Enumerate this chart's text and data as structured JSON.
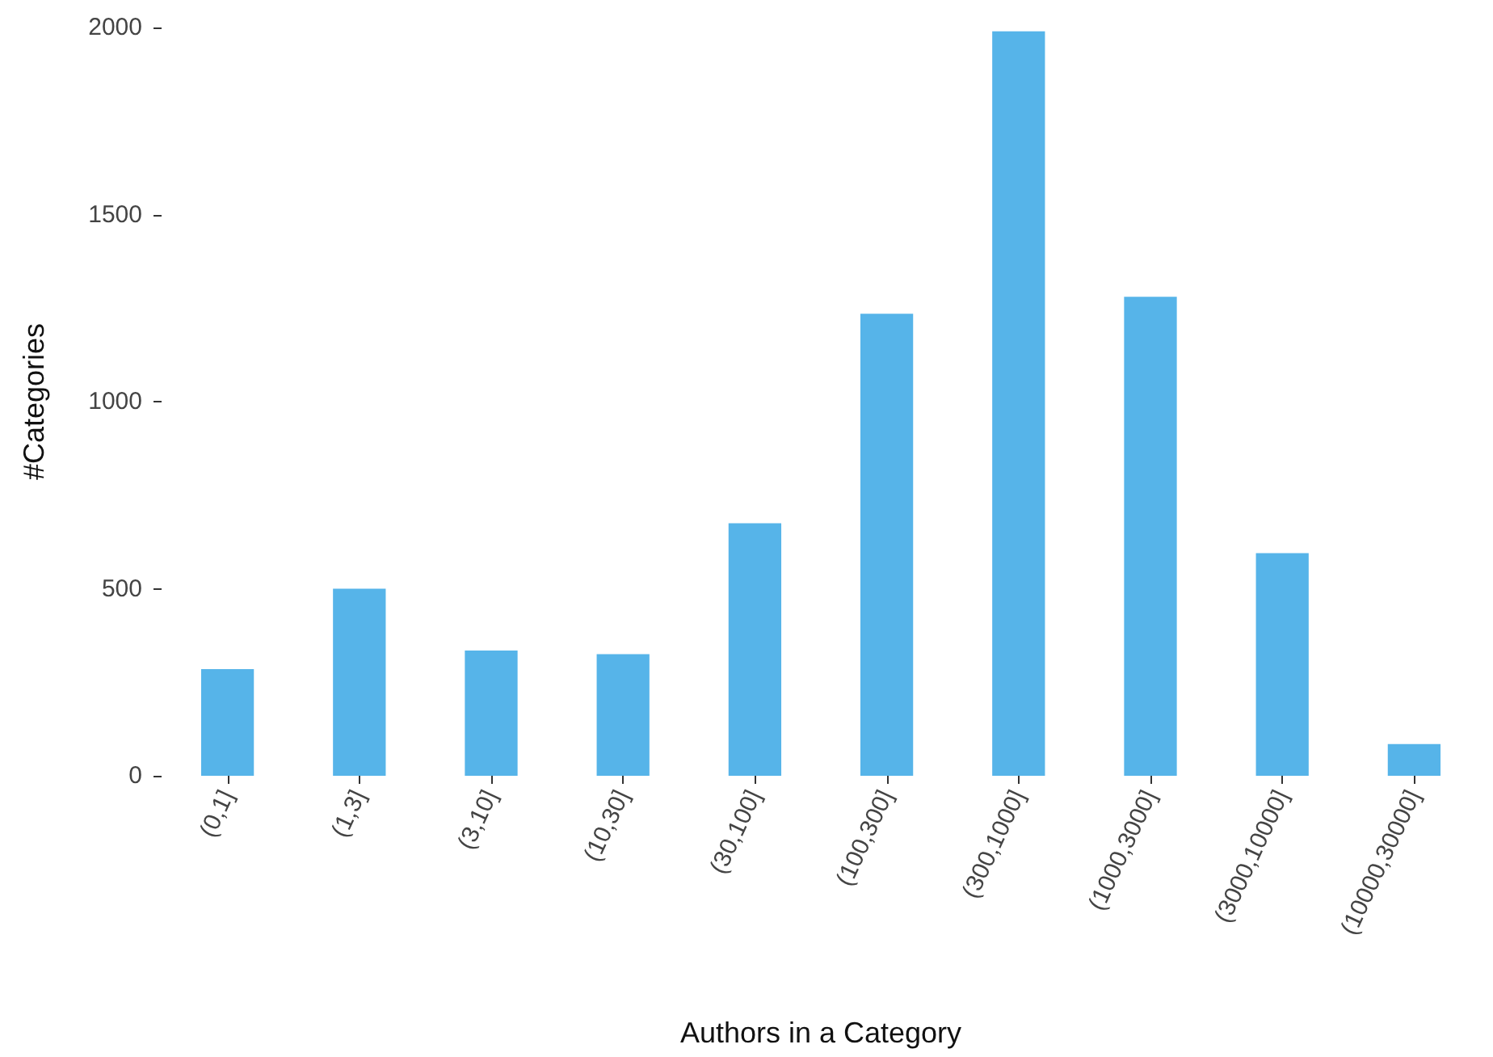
{
  "chart_data": {
    "type": "bar",
    "xlabel": "Authors in a Category",
    "ylabel": "#Categories",
    "categories": [
      "(0,1]",
      "(1,3]",
      "(3,10]",
      "(10,30]",
      "(30,100]",
      "(100,300]",
      "(300,1000]",
      "(1000,3000]",
      "(3000,10000]",
      "(10000,30000]"
    ],
    "values": [
      285,
      500,
      335,
      325,
      675,
      1235,
      1990,
      1280,
      595,
      85
    ],
    "color": "#56b4e9",
    "ylim": [
      0,
      2000
    ],
    "yticks": [
      0,
      500,
      1000,
      1500,
      2000
    ],
    "grid": false
  }
}
